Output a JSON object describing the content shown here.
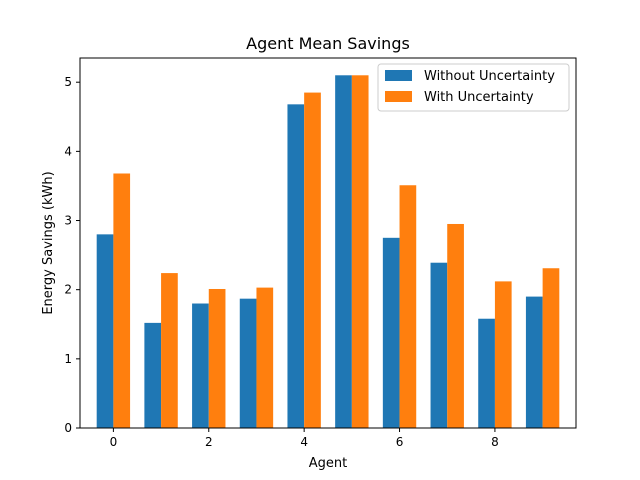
{
  "chart_data": {
    "type": "bar",
    "title": "Agent Mean Savings",
    "xlabel": "Agent",
    "ylabel": "Energy Savings (kWh)",
    "categories": [
      0,
      1,
      2,
      3,
      4,
      5,
      6,
      7,
      8,
      9
    ],
    "xticks": [
      "0",
      "2",
      "4",
      "6",
      "8"
    ],
    "yticks": [
      "0",
      "1",
      "2",
      "3",
      "4",
      "5"
    ],
    "ylim": [
      0,
      5.35
    ],
    "xlim": [
      -0.7,
      9.7
    ],
    "grid": false,
    "legend_position": "top-right",
    "series": [
      {
        "name": "Without Uncertainty",
        "color": "#1f77b4",
        "values": [
          2.8,
          1.52,
          1.8,
          1.87,
          4.68,
          5.1,
          2.75,
          2.39,
          1.58,
          1.9
        ]
      },
      {
        "name": "With Uncertainty",
        "color": "#ff7f0e",
        "values": [
          3.68,
          2.24,
          2.01,
          2.03,
          4.85,
          5.1,
          3.51,
          2.95,
          2.12,
          2.31
        ]
      }
    ]
  }
}
